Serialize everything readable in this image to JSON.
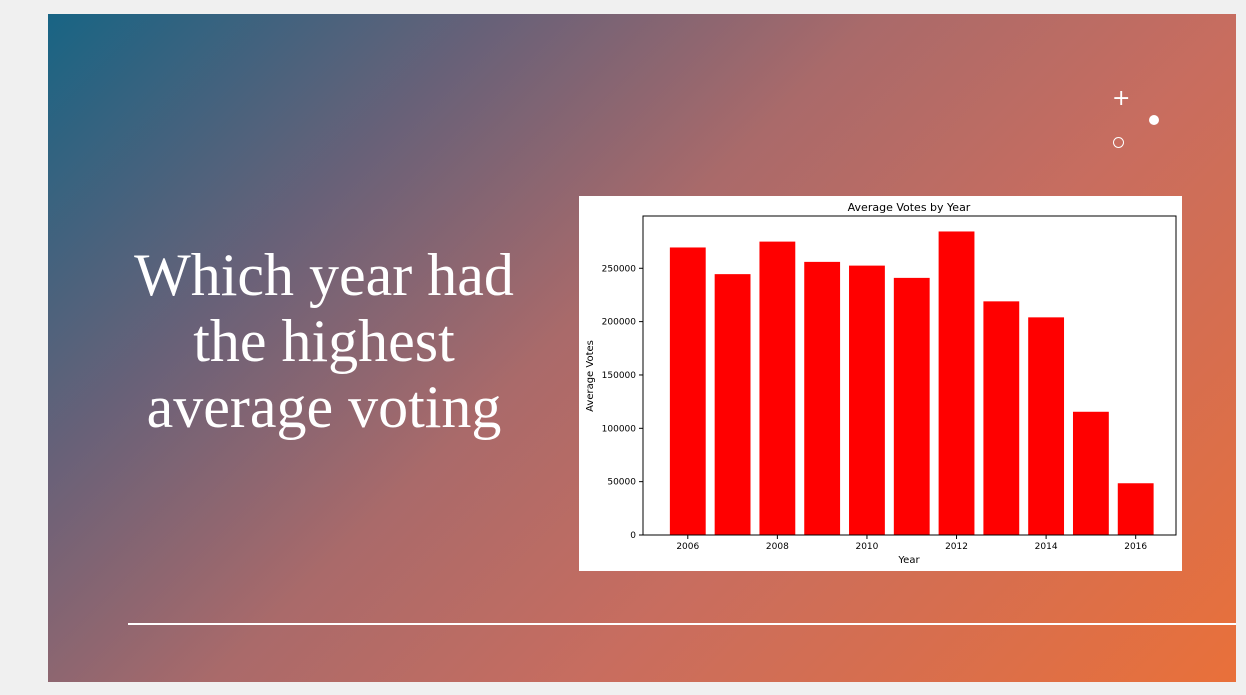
{
  "slide": {
    "title": "Which year had the highest average voting"
  },
  "chart_data": {
    "type": "bar",
    "title": "Average Votes by Year",
    "xlabel": "Year",
    "ylabel": "Average Votes",
    "categories": [
      2006,
      2007,
      2008,
      2009,
      2010,
      2011,
      2012,
      2013,
      2014,
      2015,
      2016
    ],
    "values": [
      269500,
      244500,
      275000,
      256000,
      252500,
      241000,
      284500,
      219000,
      204000,
      115500,
      48500
    ],
    "xticks": [
      "2006",
      "2008",
      "2010",
      "2012",
      "2014",
      "2016"
    ],
    "yticks": [
      "0",
      "50000",
      "100000",
      "150000",
      "200000",
      "250000"
    ],
    "ylim": [
      0,
      300000
    ],
    "bar_color": "#ff0000",
    "grid": false,
    "legend": false
  }
}
